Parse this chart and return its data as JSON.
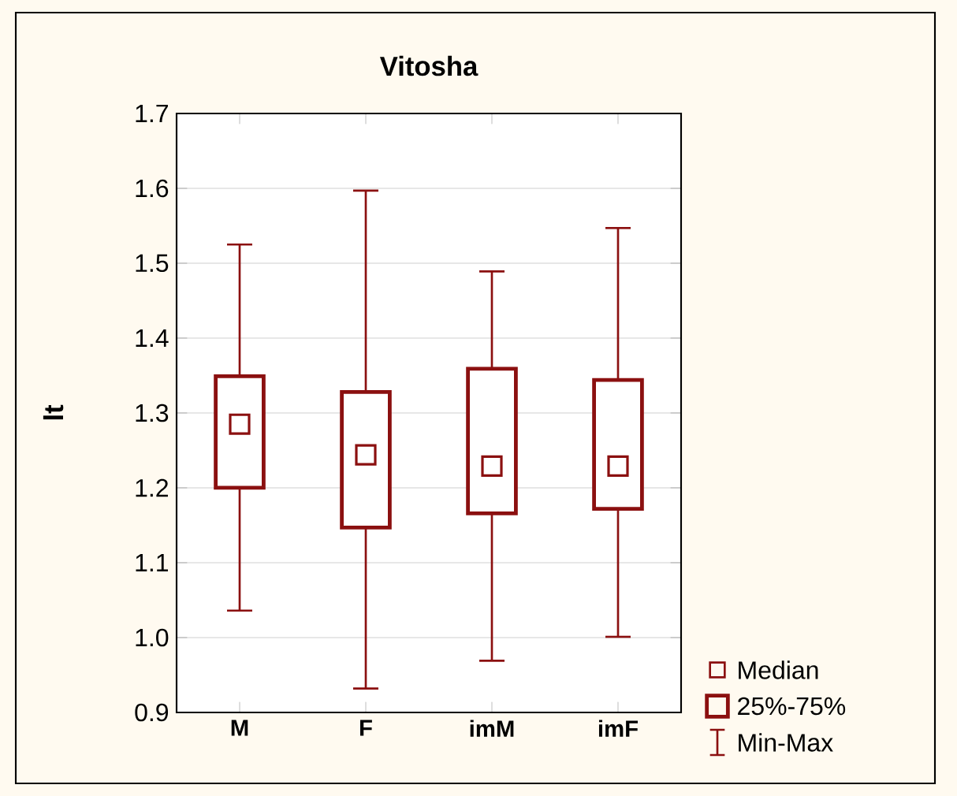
{
  "chart_data": {
    "type": "box",
    "title": "Vitosha",
    "ylabel": "lt",
    "categories": [
      "M",
      "F",
      "imM",
      "imF"
    ],
    "boxes": [
      {
        "low": 1.036,
        "q1": 1.2,
        "median": 1.285,
        "q3": 1.349,
        "high": 1.525
      },
      {
        "low": 0.932,
        "q1": 1.147,
        "median": 1.244,
        "q3": 1.328,
        "high": 1.597
      },
      {
        "low": 0.969,
        "q1": 1.166,
        "median": 1.229,
        "q3": 1.359,
        "high": 1.489
      },
      {
        "low": 1.001,
        "q1": 1.172,
        "median": 1.229,
        "q3": 1.344,
        "high": 1.547
      }
    ],
    "color": "#8b1010",
    "ylim": [
      0.9,
      1.7
    ],
    "yticks": [
      {
        "value": 0.9,
        "label": "0.9"
      },
      {
        "value": 1,
        "label": "1.0"
      },
      1.1,
      1.2,
      1.3,
      1.4,
      1.5,
      1.6,
      1.7
    ],
    "grid": "y",
    "annotations": [
      "Median",
      "25%-75%",
      "Min-Max"
    ]
  }
}
